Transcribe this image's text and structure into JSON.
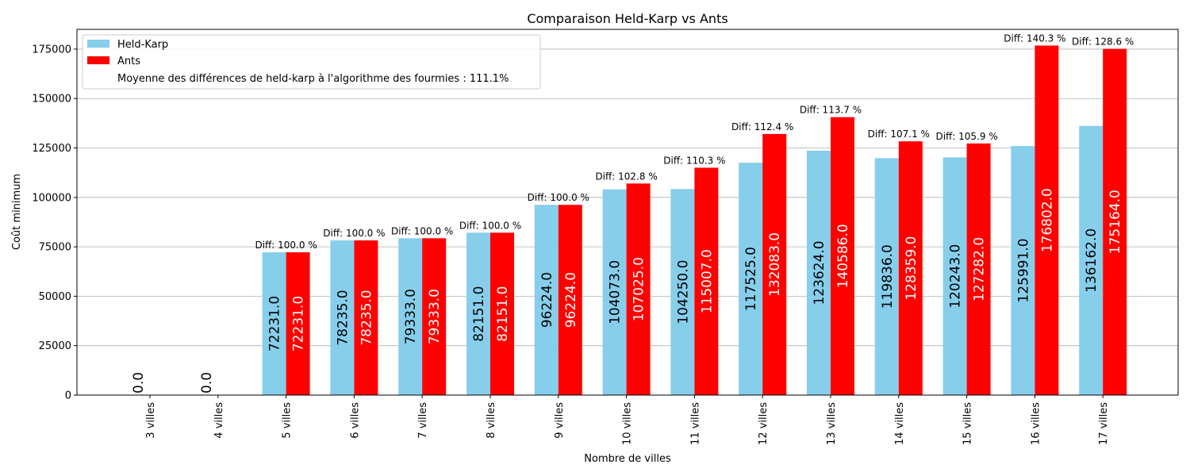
{
  "chart_data": {
    "type": "bar",
    "title": "Comparaison Held-Karp vs Ants",
    "xlabel": "Nombre de villes",
    "ylabel": "Coût minimum",
    "ylim": [
      0,
      185000
    ],
    "yticks": [
      0,
      25000,
      50000,
      75000,
      100000,
      125000,
      150000,
      175000
    ],
    "grid": "y",
    "legend_position": "top-left",
    "categories": [
      "3 villes",
      "4 villes",
      "5 villes",
      "6 villes",
      "7 villes",
      "8 villes",
      "9 villes",
      "10 villes",
      "11 villes",
      "12 villes",
      "13 villes",
      "14 villes",
      "15 villes",
      "16 villes",
      "17 villes"
    ],
    "series": [
      {
        "name": "Held-Karp",
        "color": "#87ceeb",
        "values": [
          0,
          0,
          72231,
          78235,
          79333,
          82151,
          96224,
          104073,
          104250,
          117525,
          123624,
          119836,
          120243,
          125991,
          136162
        ],
        "value_labels": [
          "0.0",
          "0.0",
          "72231.0",
          "78235.0",
          "79333.0",
          "82151.0",
          "96224.0",
          "104073.0",
          "104250.0",
          "117525.0",
          "123624.0",
          "119836.0",
          "120243.0",
          "125991.0",
          "136162.0"
        ],
        "label_color": "#000000"
      },
      {
        "name": "Ants",
        "color": "#ff0000",
        "values": [
          null,
          null,
          72231,
          78235,
          79333,
          82151,
          96224,
          107025,
          115007,
          132083,
          140586,
          128359,
          127282,
          176802,
          175164
        ],
        "value_labels": [
          "",
          "",
          "72231.0",
          "78235.0",
          "79333.0",
          "82151.0",
          "96224.0",
          "107025.0",
          "115007.0",
          "132083.0",
          "140586.0",
          "128359.0",
          "127282.0",
          "176802.0",
          "175164.0"
        ],
        "label_color": "#ffffff"
      }
    ],
    "annotations": [
      "",
      "",
      "Diff: 100.0 %",
      "Diff: 100.0 %",
      "Diff: 100.0 %",
      "Diff: 100.0 %",
      "Diff: 100.0 %",
      "Diff: 102.8 %",
      "Diff: 110.3 %",
      "Diff: 112.4 %",
      "Diff: 113.7 %",
      "Diff: 107.1 %",
      "Diff: 105.9 %",
      "Diff: 140.3 %",
      "Diff: 128.6 %"
    ],
    "legend": {
      "entries": [
        "Held-Karp",
        "Ants"
      ],
      "note": "Moyenne des différences de held-karp à l'algorithme des fourmies : 111.1%"
    }
  }
}
